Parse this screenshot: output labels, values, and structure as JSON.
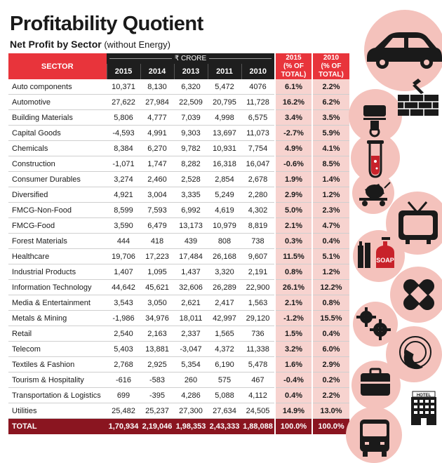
{
  "title": "Profitability Quotient",
  "subtitle_bold": "Net Profit by Sector",
  "subtitle_rest": "(without Energy)",
  "header": {
    "sector": "SECTOR",
    "unit": "₹ CRORE",
    "years": [
      "2015",
      "2014",
      "2013",
      "2011",
      "2010"
    ],
    "pct2015": [
      "2015",
      "(% OF",
      "TOTAL)"
    ],
    "pct2010": [
      "2010",
      "(% OF",
      "TOTAL)"
    ]
  },
  "rows": [
    {
      "sector": "Auto components",
      "v2015": "10,371",
      "v2014": "8,130",
      "v2013": "6,320",
      "v2011": "5,472",
      "v2010": "4076",
      "p2015": "6.1%",
      "p2010": "2.2%"
    },
    {
      "sector": "Automotive",
      "v2015": "27,622",
      "v2014": "27,984",
      "v2013": "22,509",
      "v2011": "20,795",
      "v2010": "11,728",
      "p2015": "16.2%",
      "p2010": "6.2%"
    },
    {
      "sector": "Building Materials",
      "v2015": "5,806",
      "v2014": "4,777",
      "v2013": "7,039",
      "v2011": "4,998",
      "v2010": "6,575",
      "p2015": "3.4%",
      "p2010": "3.5%"
    },
    {
      "sector": "Capital Goods",
      "v2015": "-4,593",
      "v2014": "4,991",
      "v2013": "9,303",
      "v2011": "13,697",
      "v2010": "11,073",
      "p2015": "-2.7%",
      "p2010": "5.9%"
    },
    {
      "sector": "Chemicals",
      "v2015": "8,384",
      "v2014": "6,270",
      "v2013": "9,782",
      "v2011": "10,931",
      "v2010": "7,754",
      "p2015": "4.9%",
      "p2010": "4.1%"
    },
    {
      "sector": "Construction",
      "v2015": "-1,071",
      "v2014": "1,747",
      "v2013": "8,282",
      "v2011": "16,318",
      "v2010": "16,047",
      "p2015": "-0.6%",
      "p2010": "8.5%"
    },
    {
      "sector": "Consumer Durables",
      "v2015": "3,274",
      "v2014": "2,460",
      "v2013": "2,528",
      "v2011": "2,854",
      "v2010": "2,678",
      "p2015": "1.9%",
      "p2010": "1.4%"
    },
    {
      "sector": "Diversified",
      "v2015": "4,921",
      "v2014": "3,004",
      "v2013": "3,335",
      "v2011": "5,249",
      "v2010": "2,280",
      "p2015": "2.9%",
      "p2010": "1.2%"
    },
    {
      "sector": "FMCG-Non-Food",
      "v2015": "8,599",
      "v2014": "7,593",
      "v2013": "6,992",
      "v2011": "4,619",
      "v2010": "4,302",
      "p2015": "5.0%",
      "p2010": "2.3%"
    },
    {
      "sector": "FMCG-Food",
      "v2015": "3,590",
      "v2014": "6,479",
      "v2013": "13,173",
      "v2011": "10,979",
      "v2010": "8,819",
      "p2015": "2.1%",
      "p2010": "4.7%"
    },
    {
      "sector": "Forest Materials",
      "v2015": "444",
      "v2014": "418",
      "v2013": "439",
      "v2011": "808",
      "v2010": "738",
      "p2015": "0.3%",
      "p2010": "0.4%"
    },
    {
      "sector": "Healthcare",
      "v2015": "19,706",
      "v2014": "17,223",
      "v2013": "17,484",
      "v2011": "26,168",
      "v2010": "9,607",
      "p2015": "11.5%",
      "p2010": "5.1%"
    },
    {
      "sector": "Industrial Products",
      "v2015": "1,407",
      "v2014": "1,095",
      "v2013": "1,437",
      "v2011": "3,320",
      "v2010": "2,191",
      "p2015": "0.8%",
      "p2010": "1.2%"
    },
    {
      "sector": "Information Technology",
      "v2015": "44,642",
      "v2014": "45,621",
      "v2013": "32,606",
      "v2011": "26,289",
      "v2010": "22,900",
      "p2015": "26.1%",
      "p2010": "12.2%"
    },
    {
      "sector": "Media & Entertainment",
      "v2015": "3,543",
      "v2014": "3,050",
      "v2013": "2,621",
      "v2011": "2,417",
      "v2010": "1,563",
      "p2015": "2.1%",
      "p2010": "0.8%"
    },
    {
      "sector": "Metals & Mining",
      "v2015": "-1,986",
      "v2014": "34,976",
      "v2013": "18,011",
      "v2011": "42,997",
      "v2010": "29,120",
      "p2015": "-1.2%",
      "p2010": "15.5%"
    },
    {
      "sector": "Retail",
      "v2015": "2,540",
      "v2014": "2,163",
      "v2013": "2,337",
      "v2011": "1,565",
      "v2010": "736",
      "p2015": "1.5%",
      "p2010": "0.4%"
    },
    {
      "sector": "Telecom",
      "v2015": "5,403",
      "v2014": "13,881",
      "v2013": "-3,047",
      "v2011": "4,372",
      "v2010": "11,338",
      "p2015": "3.2%",
      "p2010": "6.0%"
    },
    {
      "sector": "Textiles & Fashion",
      "v2015": "2,768",
      "v2014": "2,925",
      "v2013": "5,354",
      "v2011": "6,190",
      "v2010": "5,478",
      "p2015": "1.6%",
      "p2010": "2.9%"
    },
    {
      "sector": "Tourism & Hospitality",
      "v2015": "-616",
      "v2014": "-583",
      "v2013": "260",
      "v2011": "575",
      "v2010": "467",
      "p2015": "-0.4%",
      "p2010": "0.2%"
    },
    {
      "sector": "Transportation & Logistics",
      "v2015": "699",
      "v2014": "-395",
      "v2013": "4,286",
      "v2011": "5,088",
      "v2010": "4,112",
      "p2015": "0.4%",
      "p2010": "2.2%"
    },
    {
      "sector": "Utilities",
      "v2015": "25,482",
      "v2014": "25,237",
      "v2013": "27,300",
      "v2011": "27,634",
      "v2010": "24,505",
      "p2015": "14.9%",
      "p2010": "13.0%"
    }
  ],
  "total": {
    "sector": "TOTAL",
    "v2015": "1,70,934",
    "v2014": "2,19,046",
    "v2013": "1,98,353",
    "v2011": "2,43,333",
    "v2010": "1,88,088",
    "p2015": "100.0%",
    "p2010": "100.0%"
  },
  "icons": {
    "hotel_sign": "HOTEL",
    "soap_label": "SOAP"
  },
  "colors": {
    "accent_red": "#e8343b",
    "dark_header": "#1e1e1e",
    "pct_bg": "#f7d3cf",
    "total_bg": "#8a1520",
    "circle_bg": "#f4c2bc"
  }
}
